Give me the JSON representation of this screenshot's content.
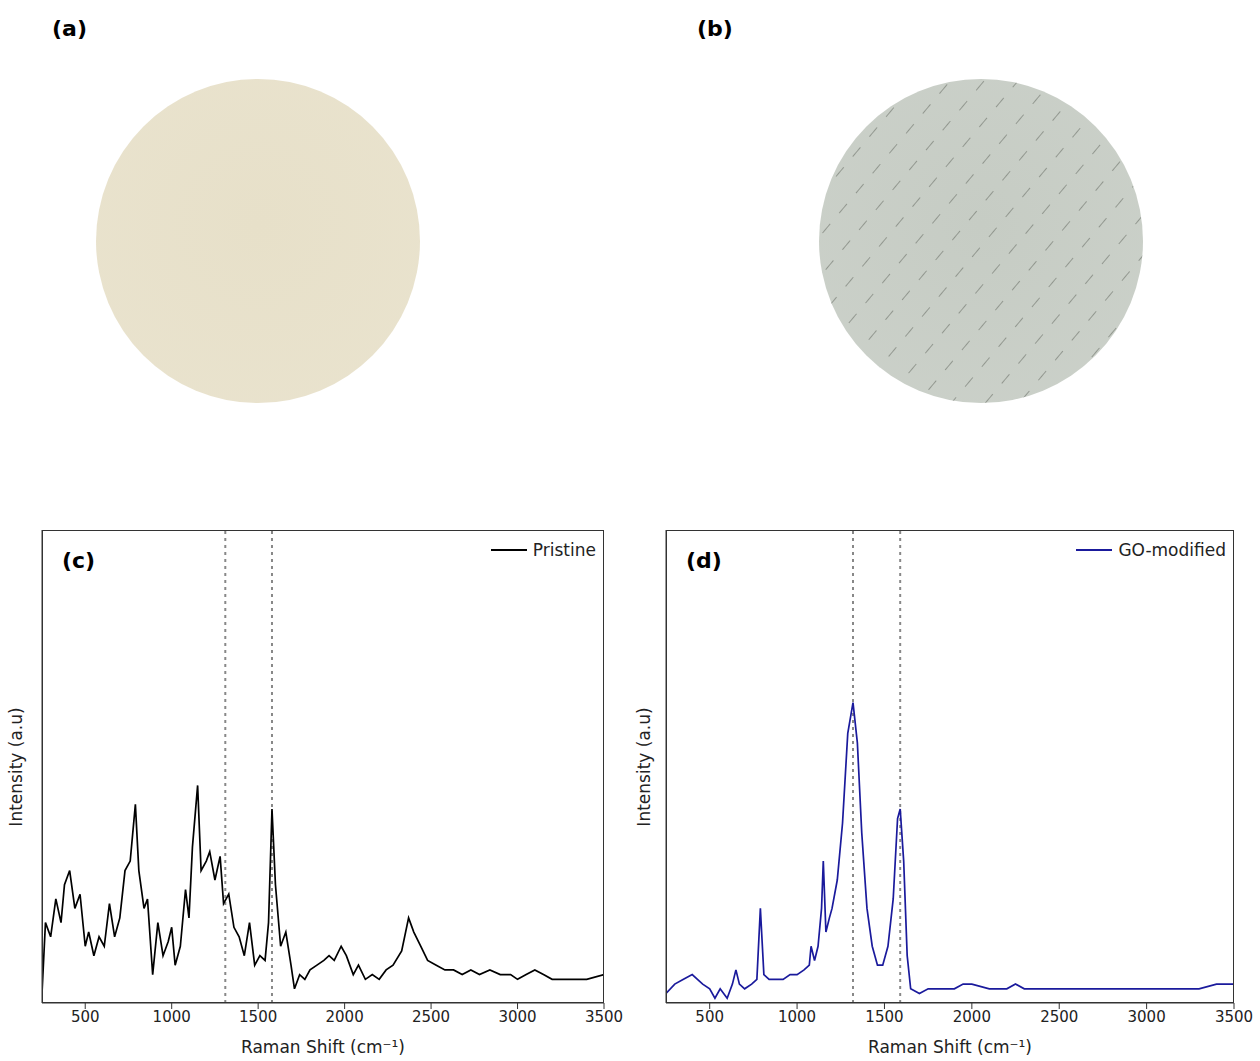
{
  "photos": [
    {
      "label": "(a)"
    },
    {
      "label": "(b)"
    }
  ],
  "chart_data": [
    {
      "type": "line",
      "panel": "(c)",
      "x_label": "Raman Shift (cm⁻¹)",
      "y_label": "Intensity (a.u)",
      "xlim": [
        250,
        3500
      ],
      "xticks": [
        500,
        1000,
        1500,
        2000,
        2500,
        3000,
        3500
      ],
      "ylim": [
        0,
        100
      ],
      "tick_labels": "x",
      "legend": "upper right",
      "line_style": "dotted",
      "reference_lines": [
        1310,
        1580
      ],
      "x": [
        250,
        270,
        300,
        330,
        360,
        380,
        410,
        440,
        470,
        500,
        520,
        550,
        580,
        610,
        640,
        670,
        700,
        730,
        760,
        790,
        810,
        840,
        860,
        890,
        920,
        950,
        980,
        1000,
        1020,
        1050,
        1080,
        1100,
        1120,
        1150,
        1170,
        1200,
        1220,
        1250,
        1280,
        1300,
        1330,
        1360,
        1390,
        1420,
        1450,
        1480,
        1510,
        1540,
        1560,
        1580,
        1600,
        1630,
        1660,
        1690,
        1710,
        1740,
        1770,
        1800,
        1840,
        1880,
        1910,
        1940,
        1980,
        2010,
        2050,
        2080,
        2120,
        2160,
        2200,
        2240,
        2280,
        2330,
        2370,
        2400,
        2440,
        2480,
        2530,
        2580,
        2630,
        2680,
        2730,
        2780,
        2840,
        2900,
        2960,
        3000,
        3050,
        3100,
        3150,
        3200,
        3250,
        3300,
        3400,
        3500
      ],
      "series": [
        {
          "name": "Pristine",
          "color": "#000000",
          "values": [
            2,
            17,
            14,
            22,
            17,
            25,
            28,
            20,
            23,
            12,
            15,
            10,
            14,
            12,
            21,
            14,
            18,
            28,
            30,
            42,
            28,
            20,
            22,
            6,
            17,
            10,
            13,
            16,
            8,
            12,
            24,
            18,
            33,
            46,
            28,
            30,
            32,
            26,
            31,
            21,
            23,
            16,
            14,
            10,
            17,
            8,
            10,
            9,
            17,
            41,
            25,
            12,
            15,
            8,
            3,
            6,
            5,
            7,
            8,
            9,
            10,
            9,
            12,
            10,
            6,
            8,
            5,
            6,
            5,
            7,
            8,
            11,
            18,
            15,
            12,
            9,
            8,
            7,
            7,
            6,
            7,
            6,
            7,
            6,
            6,
            5,
            6,
            7,
            6,
            5,
            5,
            5,
            5,
            6
          ]
        }
      ]
    },
    {
      "type": "line",
      "panel": "(d)",
      "x_label": "Raman Shift (cm⁻¹)",
      "y_label": "Intensity (a.u)",
      "xlim": [
        250,
        3500
      ],
      "xticks": [
        500,
        1000,
        1500,
        2000,
        2500,
        3000,
        3500
      ],
      "ylim": [
        0,
        100
      ],
      "tick_labels": "x",
      "legend": "upper right",
      "line_style": "dotted",
      "reference_lines": [
        1320,
        1590
      ],
      "x": [
        250,
        300,
        350,
        400,
        430,
        460,
        500,
        530,
        560,
        600,
        630,
        650,
        670,
        700,
        740,
        770,
        790,
        810,
        840,
        880,
        920,
        960,
        1000,
        1040,
        1070,
        1080,
        1100,
        1120,
        1140,
        1150,
        1165,
        1185,
        1200,
        1230,
        1260,
        1290,
        1320,
        1345,
        1370,
        1400,
        1430,
        1460,
        1490,
        1520,
        1550,
        1575,
        1590,
        1610,
        1630,
        1650,
        1700,
        1750,
        1800,
        1850,
        1900,
        1950,
        2000,
        2100,
        2200,
        2250,
        2300,
        2400,
        2500,
        2600,
        2700,
        2800,
        2900,
        3000,
        3100,
        3200,
        3300,
        3400,
        3500
      ],
      "series": [
        {
          "name": "GO-modified",
          "color": "#1a1a9c",
          "values": [
            2,
            4,
            5,
            6,
            5,
            4,
            3,
            1,
            3,
            1,
            4,
            7,
            4,
            3,
            4,
            5,
            20,
            6,
            5,
            5,
            5,
            6,
            6,
            7,
            8,
            12,
            9,
            12,
            20,
            30,
            15,
            18,
            20,
            26,
            38,
            57,
            63.5,
            55,
            36,
            20,
            12,
            8,
            8,
            12,
            22,
            39,
            41,
            30,
            10,
            3,
            2,
            3,
            3,
            3,
            3,
            4,
            4,
            3,
            3,
            4,
            3,
            3,
            3,
            3,
            3,
            3,
            3,
            3,
            3,
            3,
            3,
            4,
            4
          ]
        }
      ]
    }
  ]
}
